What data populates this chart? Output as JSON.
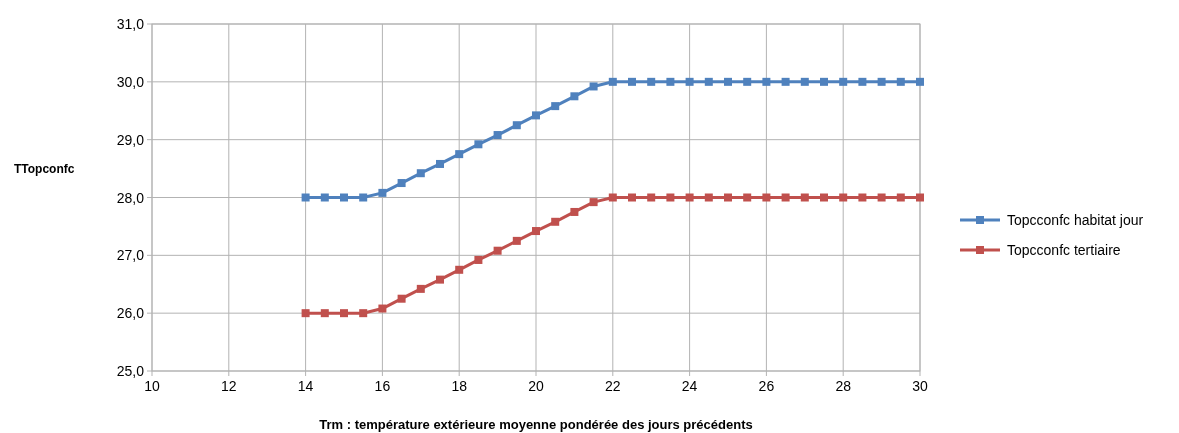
{
  "chart_data": {
    "type": "line",
    "xlabel": "Trm : température extérieure moyenne pondérée des jours précédents",
    "ylabel": "TTopconfc",
    "x": [
      14,
      14.5,
      15,
      15.5,
      16,
      16.5,
      17,
      17.5,
      18,
      18.5,
      19,
      19.5,
      20,
      20.5,
      21,
      21.5,
      22,
      22.5,
      23,
      23.5,
      24,
      24.5,
      25,
      25.5,
      26,
      26.5,
      27,
      27.5,
      28,
      28.5,
      29,
      29.5,
      30
    ],
    "series": [
      {
        "name": "Topcconfc habitat jour",
        "color": "#4f81bd",
        "values": [
          28,
          28,
          28,
          28,
          28.08,
          28.25,
          28.42,
          28.58,
          28.75,
          28.92,
          29.08,
          29.25,
          29.42,
          29.58,
          29.75,
          29.92,
          30,
          30,
          30,
          30,
          30,
          30,
          30,
          30,
          30,
          30,
          30,
          30,
          30,
          30,
          30,
          30,
          30
        ]
      },
      {
        "name": "Topcconfc tertiaire",
        "color": "#c0504d",
        "values": [
          26,
          26,
          26,
          26,
          26.08,
          26.25,
          26.42,
          26.58,
          26.75,
          26.92,
          27.08,
          27.25,
          27.42,
          27.58,
          27.75,
          27.92,
          28,
          28,
          28,
          28,
          28,
          28,
          28,
          28,
          28,
          28,
          28,
          28,
          28,
          28,
          28,
          28,
          28
        ]
      }
    ],
    "xlim": [
      10,
      30
    ],
    "xticks": [
      10,
      12,
      14,
      16,
      18,
      20,
      22,
      24,
      26,
      28,
      30
    ],
    "ylim": [
      25,
      31
    ],
    "yticks": [
      {
        "value": 25,
        "label": "25,0"
      },
      {
        "value": 26,
        "label": "26,0"
      },
      {
        "value": 27,
        "label": "27,0"
      },
      {
        "value": 28,
        "label": "28,0"
      },
      {
        "value": 29,
        "label": "29,0"
      },
      {
        "value": 30,
        "label": "30,0"
      },
      {
        "value": 31,
        "label": "31,0"
      }
    ],
    "grid": true,
    "legend": "right",
    "marker": "square",
    "line_style": "solid"
  }
}
